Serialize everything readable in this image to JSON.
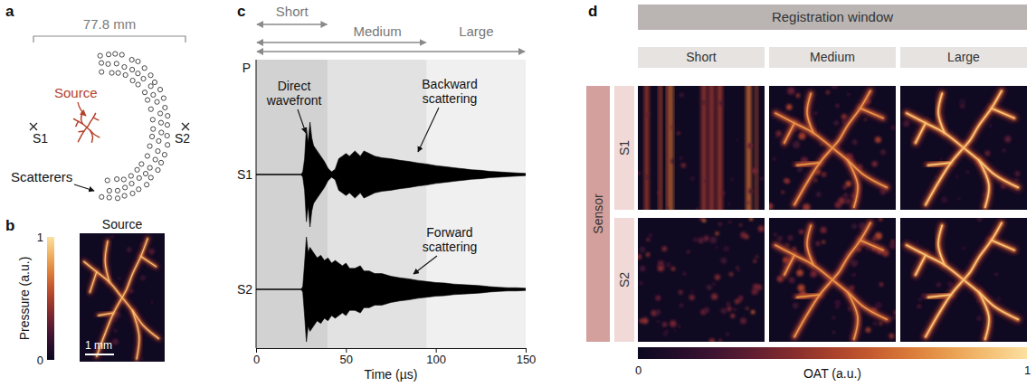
{
  "panel_a": {
    "panel_label": "a",
    "dimension": "77.8 mm",
    "source": "Source",
    "scatterers": "Scatterers",
    "sensors": [
      "S1",
      "S2"
    ]
  },
  "panel_b": {
    "panel_label": "b",
    "title": "Source",
    "scale_bar": "1 mm",
    "colorbar": {
      "label": "Pressure (a.u.)",
      "range": [
        0,
        1
      ],
      "ticks": [
        0,
        1
      ]
    }
  },
  "chart_data": {
    "panel_label": "c",
    "type": "area",
    "y_label": "P",
    "x_label": "Time (µs)",
    "xlim": [
      0,
      150
    ],
    "xticks": [
      0,
      50,
      100,
      150
    ],
    "tick_labels": "x",
    "x": [
      0,
      25,
      26,
      27,
      28,
      29,
      30,
      31,
      32,
      34,
      36,
      38,
      40,
      42,
      44,
      46,
      48,
      50,
      52,
      55,
      58,
      60,
      63,
      66,
      70,
      75,
      80,
      85,
      90,
      95,
      100,
      105,
      110,
      115,
      120,
      125,
      130,
      135,
      140,
      145,
      150
    ],
    "series": [
      {
        "name": "S1",
        "color": "#000000",
        "values": [
          0,
          0,
          0.05,
          0.3,
          0.9,
          0.6,
          1.0,
          0.7,
          0.55,
          0.45,
          0.35,
          0.25,
          0.12,
          0.05,
          0.1,
          0.3,
          0.35,
          0.4,
          0.35,
          0.45,
          0.35,
          0.45,
          0.4,
          0.35,
          0.32,
          0.3,
          0.27,
          0.25,
          0.22,
          0.2,
          0.17,
          0.15,
          0.13,
          0.11,
          0.09,
          0.08,
          0.06,
          0.05,
          0.04,
          0.03,
          0.02
        ]
      },
      {
        "name": "S2",
        "color": "#000000",
        "values": [
          0,
          0,
          0.05,
          0.5,
          1.0,
          0.7,
          0.8,
          0.75,
          0.7,
          0.6,
          0.65,
          0.55,
          0.6,
          0.5,
          0.55,
          0.5,
          0.45,
          0.5,
          0.4,
          0.4,
          0.45,
          0.35,
          0.35,
          0.3,
          0.3,
          0.25,
          0.22,
          0.2,
          0.17,
          0.15,
          0.13,
          0.12,
          0.1,
          0.09,
          0.08,
          0.07,
          0.05,
          0.04,
          0.03,
          0.03,
          0.02
        ]
      }
    ],
    "windows": [
      {
        "name": "Short",
        "start": 0,
        "end": 40
      },
      {
        "name": "Medium",
        "start": 0,
        "end": 95
      },
      {
        "name": "Large",
        "start": 0,
        "end": 150
      }
    ],
    "annotations": [
      "Direct wavefront",
      "Backward scattering",
      "Forward scattering"
    ]
  },
  "panel_d": {
    "panel_label": "d",
    "header": "Registration window",
    "columns": [
      "Short",
      "Medium",
      "Large"
    ],
    "row_header": "Sensor",
    "rows": [
      "S1",
      "S2"
    ],
    "colorbar": {
      "label": "OAT (a.u.)",
      "range": [
        0,
        1
      ],
      "ticks": [
        0,
        1
      ]
    }
  }
}
